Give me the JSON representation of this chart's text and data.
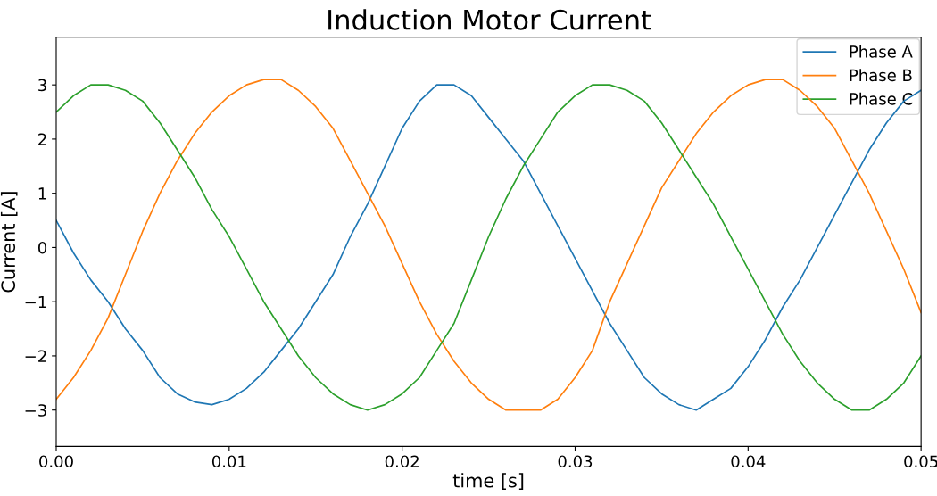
{
  "chart_data": {
    "type": "line",
    "title": "Induction Motor Current",
    "xlabel": "time [s]",
    "ylabel": "Current [A]",
    "x": [
      0,
      0.001,
      0.002,
      0.003,
      0.004,
      0.005,
      0.006,
      0.007,
      0.008,
      0.009,
      0.01,
      0.011,
      0.012,
      0.013,
      0.014,
      0.015,
      0.016,
      0.017,
      0.018,
      0.019,
      0.02,
      0.021,
      0.022,
      0.023,
      0.024,
      0.025,
      0.026,
      0.027,
      0.028,
      0.029,
      0.03,
      0.031,
      0.032,
      0.033,
      0.034,
      0.035,
      0.036,
      0.037,
      0.038,
      0.039,
      0.04,
      0.041,
      0.042,
      0.043,
      0.044,
      0.045,
      0.046,
      0.047,
      0.048,
      0.049,
      0.05
    ],
    "series": [
      {
        "name": "Phase A",
        "color": "#1f77b4",
        "values": [
          0.5,
          -0.1,
          -0.6,
          -1.0,
          -1.5,
          -1.9,
          -2.4,
          -2.7,
          -2.85,
          -2.9,
          -2.8,
          -2.6,
          -2.3,
          -1.9,
          -1.5,
          -1.0,
          -0.5,
          0.2,
          0.8,
          1.5,
          2.2,
          2.7,
          3.0,
          3.0,
          2.8,
          2.4,
          2.0,
          1.6,
          1.0,
          0.4,
          -0.2,
          -0.8,
          -1.4,
          -1.9,
          -2.4,
          -2.7,
          -2.9,
          -3.0,
          -2.8,
          -2.6,
          -2.2,
          -1.7,
          -1.1,
          -0.6,
          0.0,
          0.6,
          1.2,
          1.8,
          2.3,
          2.7,
          2.9
        ]
      },
      {
        "name": "Phase B",
        "color": "#ff7f0e",
        "values": [
          -2.8,
          -2.4,
          -1.9,
          -1.3,
          -0.5,
          0.3,
          1.0,
          1.6,
          2.1,
          2.5,
          2.8,
          3.0,
          3.1,
          3.1,
          2.9,
          2.6,
          2.2,
          1.6,
          1.0,
          0.4,
          -0.3,
          -1.0,
          -1.6,
          -2.1,
          -2.5,
          -2.8,
          -3.0,
          -3.0,
          -3.0,
          -2.8,
          -2.4,
          -1.9,
          -1.0,
          -0.3,
          0.4,
          1.1,
          1.6,
          2.1,
          2.5,
          2.8,
          3.0,
          3.1,
          3.1,
          2.9,
          2.6,
          2.2,
          1.6,
          1.0,
          0.3,
          -0.4,
          -1.2
        ]
      },
      {
        "name": "Phase C",
        "color": "#2ca02c",
        "values": [
          2.5,
          2.8,
          3.0,
          3.0,
          2.9,
          2.7,
          2.3,
          1.8,
          1.3,
          0.7,
          0.2,
          -0.4,
          -1.0,
          -1.5,
          -2.0,
          -2.4,
          -2.7,
          -2.9,
          -3.0,
          -2.9,
          -2.7,
          -2.4,
          -1.9,
          -1.4,
          -0.6,
          0.2,
          0.9,
          1.5,
          2.0,
          2.5,
          2.8,
          3.0,
          3.0,
          2.9,
          2.7,
          2.3,
          1.8,
          1.3,
          0.8,
          0.2,
          -0.4,
          -1.0,
          -1.6,
          -2.1,
          -2.5,
          -2.8,
          -3.0,
          -3.0,
          -2.8,
          -2.5,
          -2.0
        ]
      }
    ],
    "xlim": [
      0,
      0.05
    ],
    "xticks": [
      {
        "value": 0,
        "label": "0.00"
      },
      {
        "value": 0.01,
        "label": "0.01"
      },
      {
        "value": 0.02,
        "label": "0.02"
      },
      {
        "value": 0.03,
        "label": "0.03"
      },
      {
        "value": 0.04,
        "label": "0.04"
      },
      {
        "value": 0.05,
        "label": "0.05"
      }
    ],
    "ylim": [
      -3.67,
      3.88
    ],
    "yticks": [
      {
        "value": -3,
        "label": "−3"
      },
      {
        "value": -2,
        "label": "−2"
      },
      {
        "value": -1,
        "label": "−1"
      },
      0,
      1,
      2,
      3
    ],
    "grid": false,
    "legend": "top right",
    "marker": "none",
    "line_style": "solid"
  }
}
